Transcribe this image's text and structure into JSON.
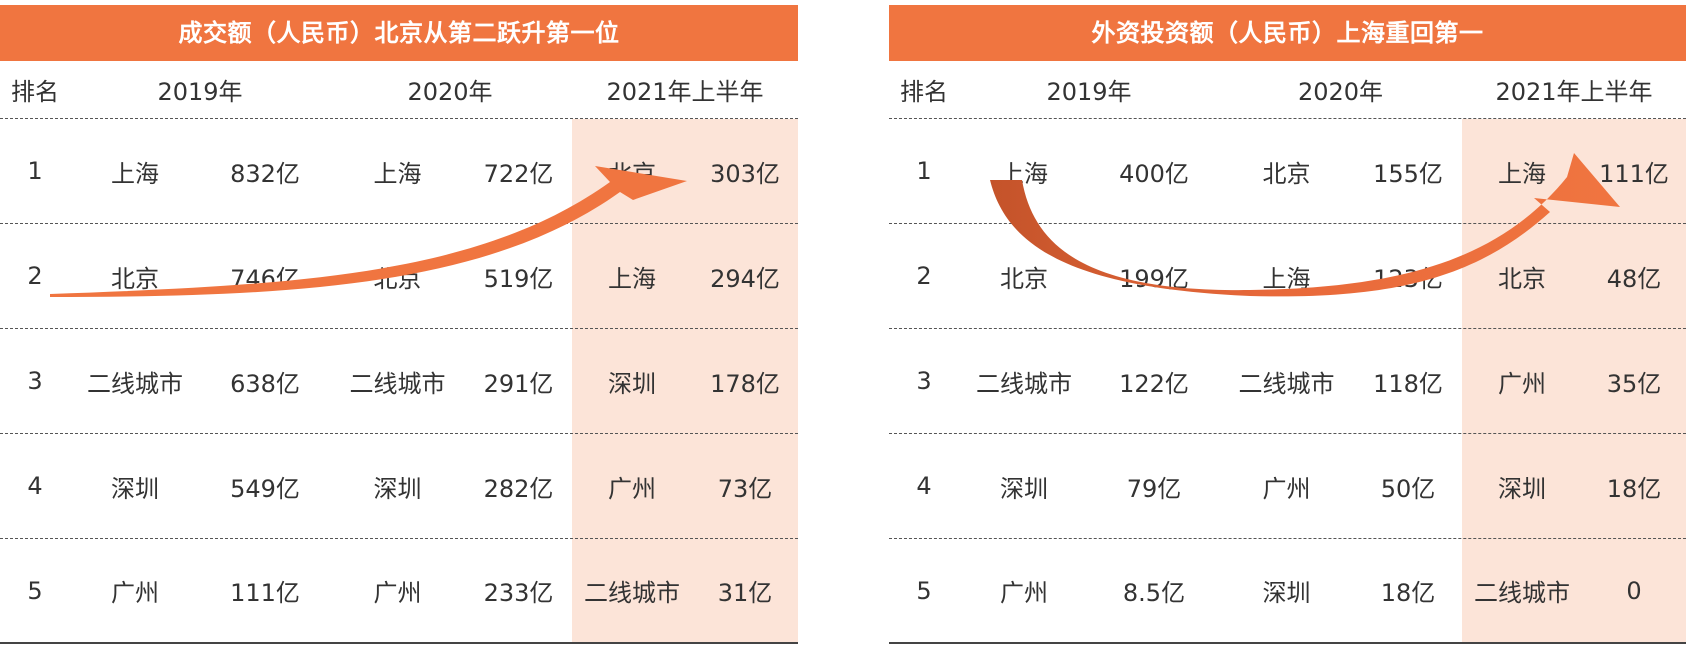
{
  "colors": {
    "title_bg": "#f07540",
    "highlight_bg": "#fce4d8",
    "arrow": "#f07540"
  },
  "chart_data": [
    {
      "type": "table",
      "title": "成交额（人民币）北京从第二跃升第一位",
      "headers": [
        "排名",
        "2019年",
        "2020年",
        "2021年上半年"
      ],
      "rows": [
        {
          "rank": "1",
          "c2019": "上海",
          "v2019": "832亿",
          "c2020": "上海",
          "v2020": "722亿",
          "c2021": "北京",
          "v2021": "303亿"
        },
        {
          "rank": "2",
          "c2019": "北京",
          "v2019": "746亿",
          "c2020": "北京",
          "v2020": "519亿",
          "c2021": "上海",
          "v2021": "294亿"
        },
        {
          "rank": "3",
          "c2019": "二线城市",
          "v2019": "638亿",
          "c2020": "二线城市",
          "v2020": "291亿",
          "c2021": "深圳",
          "v2021": "178亿"
        },
        {
          "rank": "4",
          "c2019": "深圳",
          "v2019": "549亿",
          "c2020": "深圳",
          "v2020": "282亿",
          "c2021": "广州",
          "v2021": "73亿"
        },
        {
          "rank": "5",
          "c2019": "广州",
          "v2019": "111亿",
          "c2020": "广州",
          "v2020": "233亿",
          "c2021": "二线城市",
          "v2021": "31亿"
        }
      ],
      "highlight_column": "2021年上半年"
    },
    {
      "type": "table",
      "title": "外资投资额（人民币）上海重回第一",
      "headers": [
        "排名",
        "2019年",
        "2020年",
        "2021年上半年"
      ],
      "rows": [
        {
          "rank": "1",
          "c2019": "上海",
          "v2019": "400亿",
          "c2020": "北京",
          "v2020": "155亿",
          "c2021": "上海",
          "v2021": "111亿"
        },
        {
          "rank": "2",
          "c2019": "北京",
          "v2019": "199亿",
          "c2020": "上海",
          "v2020": "123亿",
          "c2021": "北京",
          "v2021": "48亿"
        },
        {
          "rank": "3",
          "c2019": "二线城市",
          "v2019": "122亿",
          "c2020": "二线城市",
          "v2020": "118亿",
          "c2021": "广州",
          "v2021": "35亿"
        },
        {
          "rank": "4",
          "c2019": "深圳",
          "v2019": "79亿",
          "c2020": "广州",
          "v2020": "50亿",
          "c2021": "深圳",
          "v2021": "18亿"
        },
        {
          "rank": "5",
          "c2019": "广州",
          "v2019": "8.5亿",
          "c2020": "深圳",
          "v2020": "18亿",
          "c2021": "二线城市",
          "v2021": "0"
        }
      ],
      "highlight_column": "2021年上半年"
    }
  ]
}
